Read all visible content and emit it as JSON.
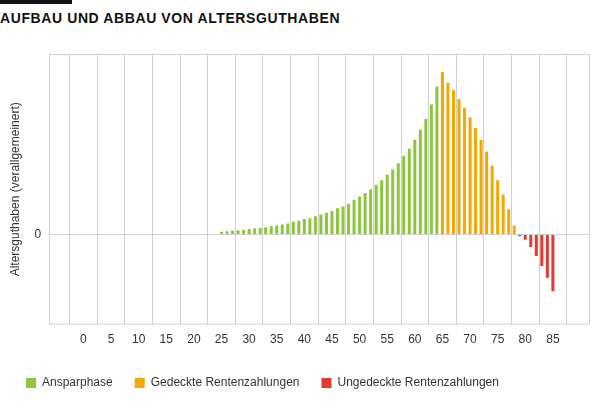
{
  "chart_data": {
    "type": "bar",
    "title": "AUFBAU UND ABBAU VON ALTERSGUTHABEN",
    "ylabel": "Altersguthaben (verallgemeinert)",
    "x": [
      25,
      26,
      27,
      28,
      29,
      30,
      31,
      32,
      33,
      34,
      35,
      36,
      37,
      38,
      39,
      40,
      41,
      42,
      43,
      44,
      45,
      46,
      47,
      48,
      49,
      50,
      51,
      52,
      53,
      54,
      55,
      56,
      57,
      58,
      59,
      60,
      61,
      62,
      63,
      64,
      65,
      66,
      67,
      68,
      69,
      70,
      71,
      72,
      73,
      74,
      75,
      76,
      77,
      78,
      79,
      80,
      81,
      82,
      83,
      84,
      85
    ],
    "series": [
      {
        "name": "Ansparphase",
        "color": "#8cc63e",
        "values": [
          0.03,
          0.035,
          0.04,
          0.045,
          0.05,
          0.06,
          0.065,
          0.07,
          0.08,
          0.09,
          0.1,
          0.11,
          0.12,
          0.14,
          0.15,
          0.17,
          0.18,
          0.2,
          0.22,
          0.24,
          0.26,
          0.29,
          0.31,
          0.34,
          0.38,
          0.42,
          0.46,
          0.5,
          0.55,
          0.6,
          0.66,
          0.72,
          0.79,
          0.87,
          0.95,
          1.05,
          1.16,
          1.28,
          1.44,
          1.64,
          null,
          null,
          null,
          null,
          null,
          null,
          null,
          null,
          null,
          null,
          null,
          null,
          null,
          null,
          null,
          null,
          null,
          null,
          null,
          null,
          null
        ]
      },
      {
        "name": "Gedeckte Rentenzahlungen",
        "color": "#f5a800",
        "values": [
          null,
          null,
          null,
          null,
          null,
          null,
          null,
          null,
          null,
          null,
          null,
          null,
          null,
          null,
          null,
          null,
          null,
          null,
          null,
          null,
          null,
          null,
          null,
          null,
          null,
          null,
          null,
          null,
          null,
          null,
          null,
          null,
          null,
          null,
          null,
          null,
          null,
          null,
          null,
          null,
          1.8,
          1.68,
          1.6,
          1.5,
          1.4,
          1.3,
          1.18,
          1.05,
          0.92,
          0.76,
          0.6,
          0.44,
          0.28,
          0.1,
          null,
          null,
          null,
          null,
          null,
          null,
          null
        ]
      },
      {
        "name": "Ungedeckte Rentenzahlungen",
        "color": "#e03c31",
        "values": [
          null,
          null,
          null,
          null,
          null,
          null,
          null,
          null,
          null,
          null,
          null,
          null,
          null,
          null,
          null,
          null,
          null,
          null,
          null,
          null,
          null,
          null,
          null,
          null,
          null,
          null,
          null,
          null,
          null,
          null,
          null,
          null,
          null,
          null,
          null,
          null,
          null,
          null,
          null,
          null,
          null,
          null,
          null,
          null,
          null,
          null,
          null,
          null,
          null,
          null,
          null,
          null,
          null,
          null,
          -0.02,
          -0.06,
          -0.14,
          -0.24,
          -0.35,
          -0.48,
          -0.63
        ]
      }
    ],
    "xlim": [
      -3.5,
      89
    ],
    "xticks": [
      0,
      5,
      10,
      15,
      20,
      25,
      30,
      35,
      40,
      45,
      50,
      55,
      60,
      65,
      70,
      75,
      80,
      85
    ],
    "ylim": [
      -1,
      2
    ],
    "yticks": [
      0
    ],
    "grid": true,
    "legend": "bottom"
  }
}
